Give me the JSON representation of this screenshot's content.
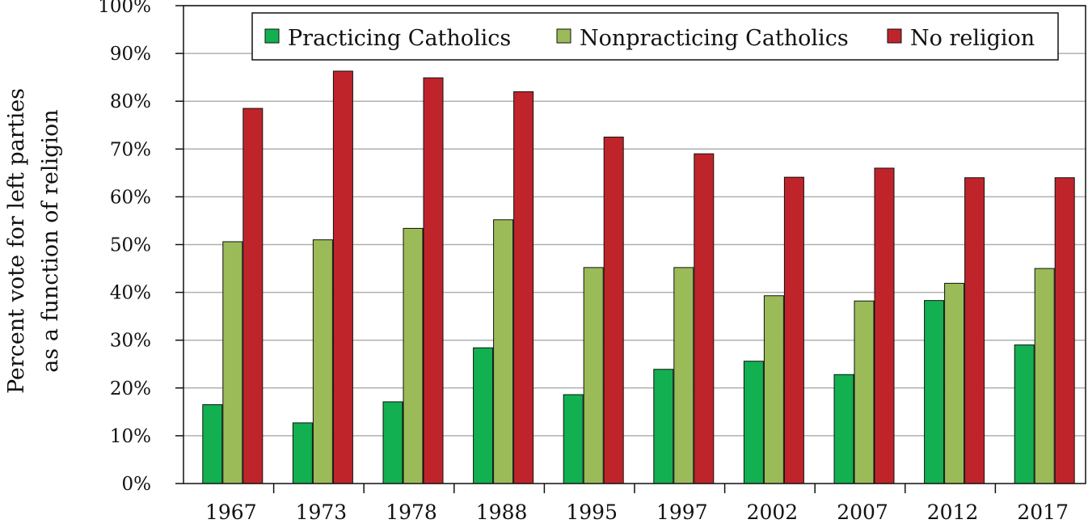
{
  "chart_data": {
    "type": "bar",
    "title": "",
    "ylabel_lines": [
      "Percent vote for left parties",
      "as a function of religion"
    ],
    "xlabel": "",
    "categories": [
      "1967",
      "1973",
      "1978",
      "1988",
      "1995",
      "1997",
      "2002",
      "2007",
      "2012",
      "2017"
    ],
    "series": [
      {
        "name": "Practicing Catholics",
        "color": "#12b050",
        "values": [
          16.5,
          12.7,
          17.1,
          28.4,
          18.6,
          23.9,
          25.6,
          22.8,
          38.3,
          29.0
        ]
      },
      {
        "name": "Nonpracticing Catholics",
        "color": "#9bbb59",
        "values": [
          50.6,
          51.0,
          53.4,
          55.2,
          45.2,
          45.2,
          39.3,
          38.2,
          41.9,
          45.0
        ]
      },
      {
        "name": "No religion",
        "color": "#c0242b",
        "values": [
          78.5,
          86.3,
          84.9,
          82.0,
          72.5,
          69.0,
          64.1,
          66.0,
          64.0,
          64.0
        ]
      }
    ],
    "yticks": [
      "0%",
      "10%",
      "20%",
      "30%",
      "40%",
      "50%",
      "60%",
      "70%",
      "80%",
      "90%",
      "100%"
    ],
    "ylim": [
      0,
      100
    ],
    "grid": true,
    "legend_position": "top"
  }
}
